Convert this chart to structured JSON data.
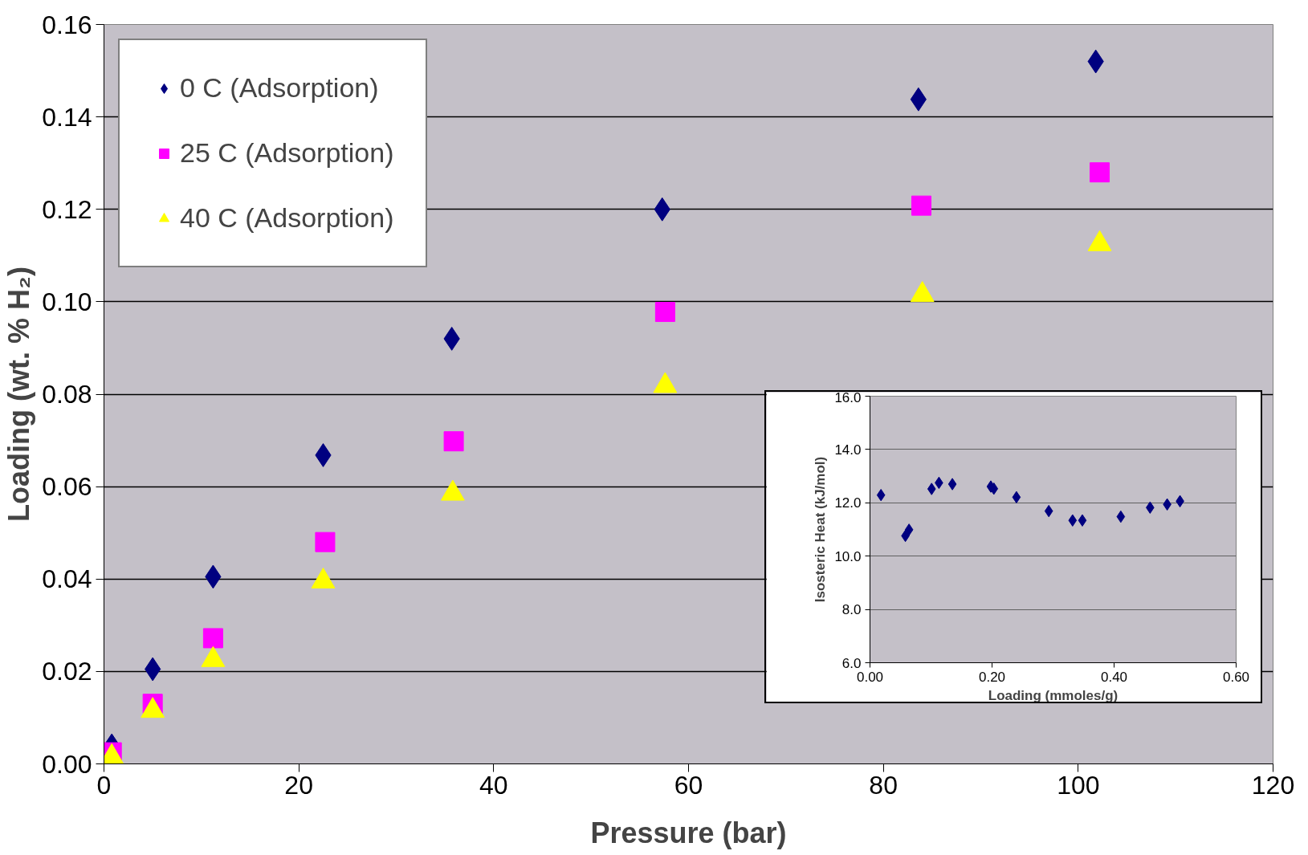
{
  "chart_data": [
    {
      "type": "scatter",
      "xlabel": "Pressure (bar)",
      "ylabel": "Loading (wt. % H₂)",
      "xlim": [
        0,
        120
      ],
      "xticks": [
        0,
        20,
        40,
        60,
        80,
        100,
        120
      ],
      "ylim": [
        0,
        0.16
      ],
      "yticks": [
        {
          "value": 0,
          "label": "0.00"
        },
        {
          "value": 0.02,
          "label": "0.02"
        },
        {
          "value": 0.04,
          "label": "0.04"
        },
        {
          "value": 0.06,
          "label": "0.06"
        },
        {
          "value": 0.08,
          "label": "0.08"
        },
        {
          "value": 0.1,
          "label": "0.10"
        },
        {
          "value": 0.12,
          "label": "0.12"
        },
        {
          "value": 0.14,
          "label": "0.14"
        },
        {
          "value": 0.16,
          "label": "0.16"
        }
      ],
      "grid": "y",
      "legend": "top left",
      "series": [
        {
          "name": "0 C (Adsorption)",
          "color": "#000080",
          "marker": "diamond",
          "x": [
            0.8,
            5,
            11.2,
            22.5,
            35.7,
            57.3,
            83.6,
            101.8
          ],
          "values": [
            0.004,
            0.0205,
            0.0405,
            0.0668,
            0.092,
            0.12,
            0.1438,
            0.152
          ]
        },
        {
          "name": "25 C (Adsorption)",
          "color": "#ff00ff",
          "marker": "square",
          "x": [
            0.8,
            5,
            11.2,
            22.7,
            35.9,
            57.6,
            83.9,
            102.2
          ],
          "values": [
            0.0025,
            0.013,
            0.0272,
            0.048,
            0.0698,
            0.0978,
            0.1208,
            0.128
          ]
        },
        {
          "name": "40 C (Adsorption)",
          "color": "#ffff00",
          "marker": "triangle",
          "x": [
            0.8,
            5,
            11.2,
            22.5,
            35.8,
            57.6,
            84,
            102.2
          ],
          "values": [
            0.0015,
            0.0115,
            0.0225,
            0.0395,
            0.0585,
            0.0818,
            0.1015,
            0.1125
          ]
        }
      ]
    },
    {
      "type": "scatter",
      "xlabel": "Loading (mmoles/g)",
      "ylabel": "Isosteric Heat (kJ/mol)",
      "xlim": [
        0,
        0.6
      ],
      "xticks": [
        {
          "value": 0,
          "label": "0.00"
        },
        {
          "value": 0.2,
          "label": "0.20"
        },
        {
          "value": 0.4,
          "label": "0.40"
        },
        {
          "value": 0.6,
          "label": "0.60"
        }
      ],
      "ylim": [
        6,
        16
      ],
      "yticks": [
        {
          "value": 6,
          "label": "6.0"
        },
        {
          "value": 8,
          "label": "8.0"
        },
        {
          "value": 10,
          "label": "10.0"
        },
        {
          "value": 12,
          "label": "12.0"
        },
        {
          "value": 14,
          "label": "14.0"
        },
        {
          "value": 16,
          "label": "16.0"
        }
      ],
      "grid": "y",
      "marker": "diamond",
      "series": [
        {
          "color": "#000080",
          "x": [
            0.018,
            0.058,
            0.064,
            0.101,
            0.113,
            0.135,
            0.198,
            0.203,
            0.24,
            0.293,
            0.332,
            0.348,
            0.411,
            0.459,
            0.487,
            0.508
          ],
          "values": [
            12.29,
            10.76,
            10.99,
            12.52,
            12.75,
            12.7,
            12.61,
            12.53,
            12.21,
            11.69,
            11.34,
            11.34,
            11.48,
            11.82,
            11.94,
            12.06
          ]
        }
      ]
    }
  ]
}
